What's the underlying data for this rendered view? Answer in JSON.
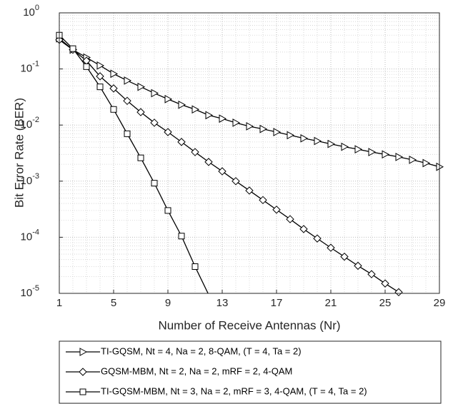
{
  "chart_data": {
    "type": "line",
    "x_label": "Number of Receive Antennas (Nr)",
    "y_label": "Bit Error Rate (BER)",
    "log_y": true,
    "grid": true,
    "minor_grid": true,
    "legend": "below",
    "xlim": [
      1,
      29
    ],
    "xticks": [
      1,
      5,
      9,
      13,
      17,
      21,
      25,
      29
    ],
    "ylim": [
      1e-05,
      1
    ],
    "yticks": [
      {
        "value": 1e-05,
        "label": "10",
        "power": "-5"
      },
      {
        "value": 0.0001,
        "label": "10",
        "power": "-4"
      },
      {
        "value": 0.001,
        "label": "10",
        "power": "-3"
      },
      {
        "value": 0.01,
        "label": "10",
        "power": "-2"
      },
      {
        "value": 0.1,
        "label": "10",
        "power": "-1"
      },
      {
        "value": 1,
        "label": "10",
        "power": "0"
      }
    ],
    "series": [
      {
        "name": "TI-GQSM, Nt = 4, Na = 2, 8-QAM, (T = 4, Ta = 2)",
        "color": "#000000",
        "marker": "triangle-right",
        "x": [
          1,
          2,
          3,
          4,
          5,
          6,
          7,
          8,
          9,
          10,
          11,
          12,
          13,
          14,
          15,
          16,
          17,
          18,
          19,
          20,
          21,
          22,
          23,
          24,
          25,
          26,
          27,
          28,
          29
        ],
        "values": [
          0.35,
          0.22,
          0.16,
          0.115,
          0.082,
          0.062,
          0.048,
          0.037,
          0.029,
          0.023,
          0.019,
          0.015,
          0.013,
          0.011,
          0.0095,
          0.0085,
          0.0075,
          0.0066,
          0.0058,
          0.0052,
          0.0046,
          0.0041,
          0.0037,
          0.0033,
          0.003,
          0.0027,
          0.0024,
          0.0021,
          0.0018
        ]
      },
      {
        "name": "GQSM-MBM, Nt = 2, Na = 2, mRF = 2, 4-QAM",
        "color": "#000000",
        "marker": "diamond",
        "x": [
          1,
          2,
          3,
          4,
          5,
          6,
          7,
          8,
          9,
          10,
          11,
          12,
          13,
          14,
          15,
          16,
          17,
          18,
          19,
          20,
          21,
          22,
          23,
          24,
          25,
          26
        ],
        "values": [
          0.33,
          0.22,
          0.14,
          0.074,
          0.045,
          0.027,
          0.017,
          0.011,
          0.0075,
          0.005,
          0.0033,
          0.0022,
          0.0015,
          0.001,
          0.00068,
          0.00046,
          0.00031,
          0.00021,
          0.00014,
          9.5e-05,
          6.5e-05,
          4.5e-05,
          3.1e-05,
          2.2e-05,
          1.5e-05,
          1.05e-05
        ]
      },
      {
        "name": "TI-GQSM-MBM, Nt = 3, Na = 2, mRF = 3, 4-QAM, (T = 4, Ta = 2)",
        "color": "#000000",
        "marker": "square",
        "x": [
          1,
          2,
          3,
          4,
          5,
          6,
          7,
          8,
          9,
          10,
          11,
          12
        ],
        "values": [
          0.4,
          0.23,
          0.11,
          0.048,
          0.019,
          0.007,
          0.0026,
          0.00092,
          0.0003,
          0.000105,
          3e-05,
          9.5e-06
        ]
      }
    ]
  }
}
